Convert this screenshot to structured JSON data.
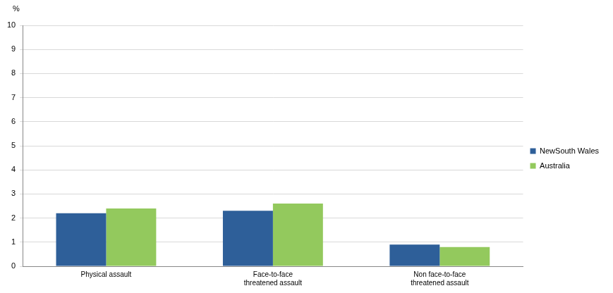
{
  "chart_data": {
    "type": "bar",
    "ylabel": "%",
    "categories": [
      "Physical assault",
      "Face-to-face\nthreatened assault",
      "Non face-to-face\nthreatened assault"
    ],
    "series": [
      {
        "name": "NewSouth Wales",
        "color": "#2e5f99",
        "values": [
          2.2,
          2.3,
          0.9
        ]
      },
      {
        "name": "Australia",
        "color": "#93c95d",
        "values": [
          2.4,
          2.6,
          0.8
        ]
      }
    ],
    "ylim": [
      0,
      10
    ],
    "yticks": [
      0,
      1,
      2,
      3,
      4,
      5,
      6,
      7,
      8,
      9,
      10
    ],
    "grid": true,
    "legend": "right"
  }
}
